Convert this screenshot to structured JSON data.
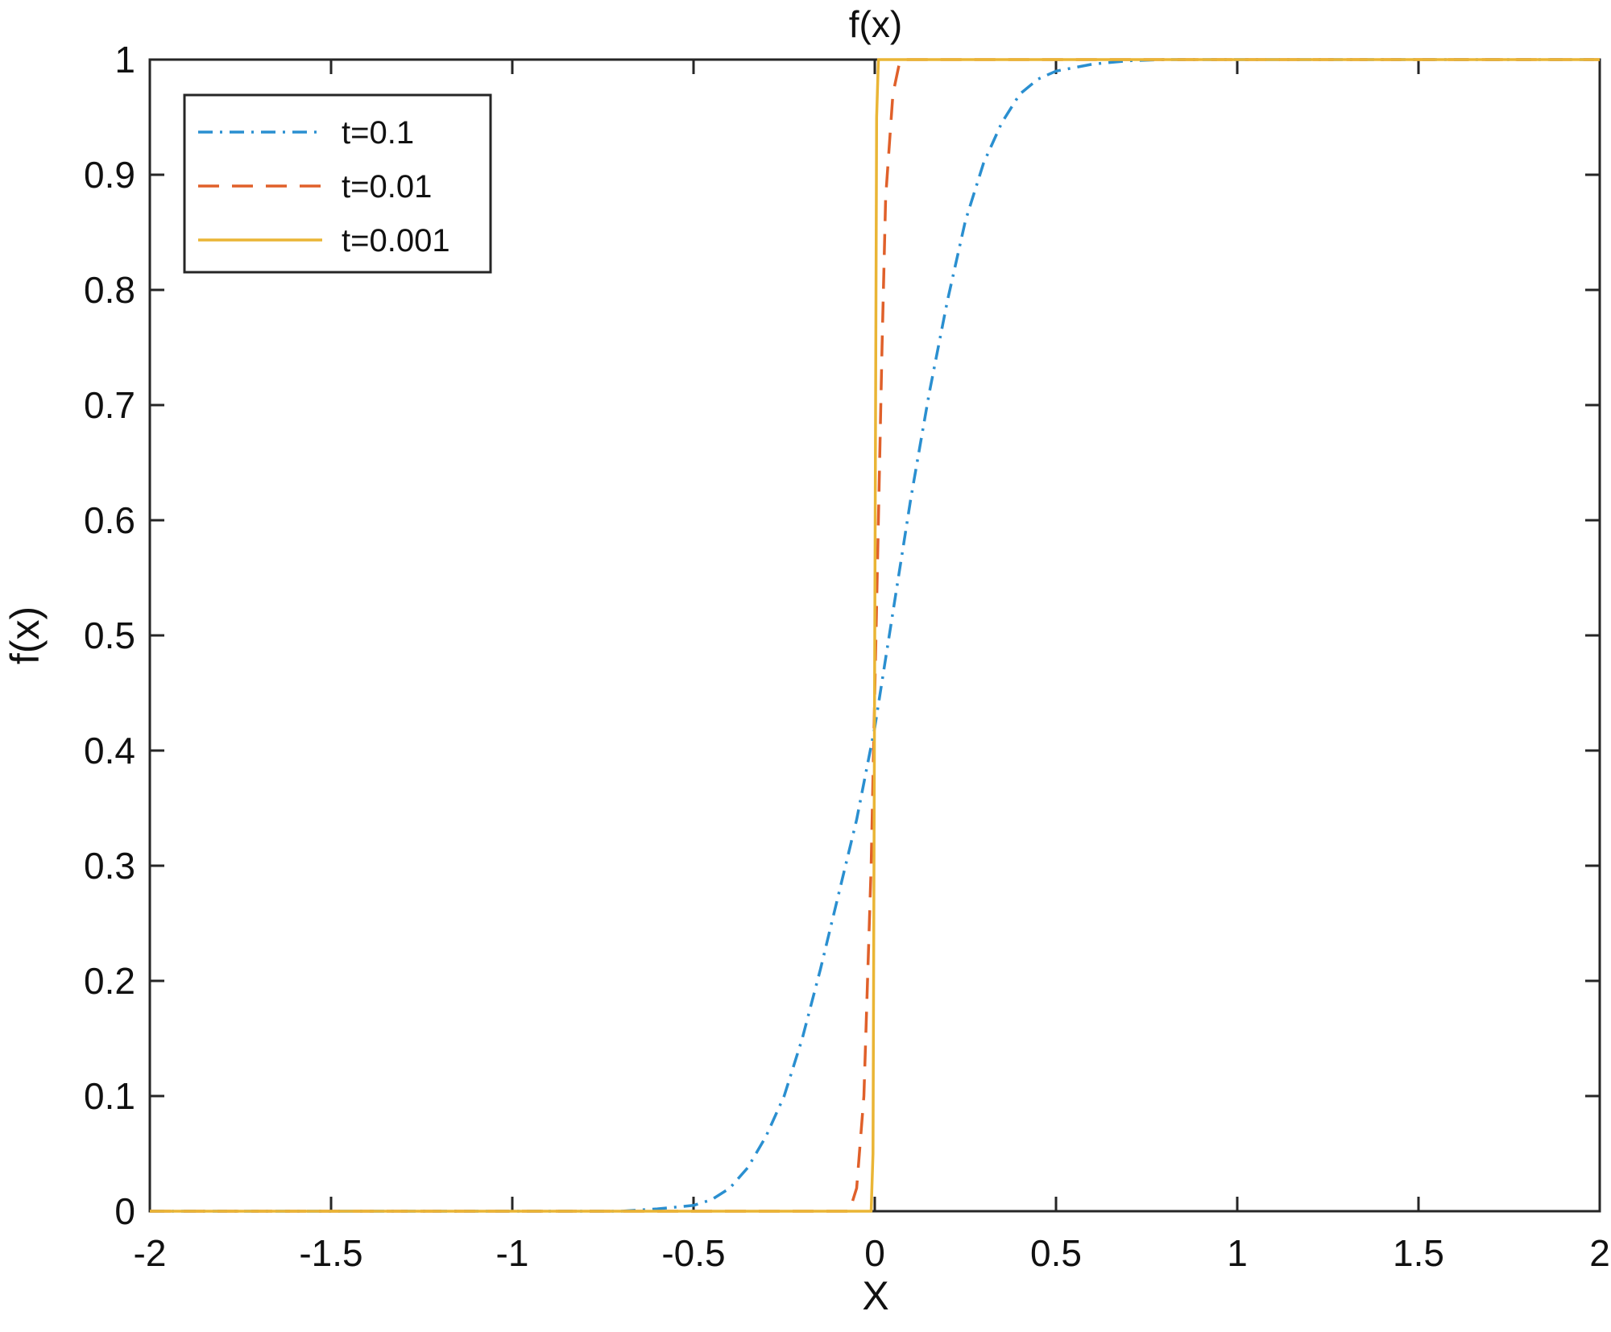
{
  "chart_data": {
    "type": "line",
    "title": "f(x)",
    "xlabel": "X",
    "ylabel": "f(x)",
    "xlim": [
      -2,
      2
    ],
    "ylim": [
      0,
      1
    ],
    "xticks": [
      "-2",
      "-1.5",
      "-1",
      "-0.5",
      "0",
      "0.5",
      "1",
      "1.5",
      "2"
    ],
    "yticks": [
      "0",
      "0.1",
      "0.2",
      "0.3",
      "0.4",
      "0.5",
      "0.6",
      "0.7",
      "0.8",
      "0.9",
      "1"
    ],
    "grid": false,
    "legend_position": "top-left",
    "series": [
      {
        "name": "t=0.1",
        "color": "#2a8fd0",
        "line_style": "dash-dot",
        "x": [
          -2,
          -0.7,
          -0.6,
          -0.5,
          -0.45,
          -0.4,
          -0.35,
          -0.3,
          -0.25,
          -0.2,
          -0.15,
          -0.1,
          -0.05,
          0,
          0.05,
          0.1,
          0.15,
          0.2,
          0.25,
          0.3,
          0.35,
          0.4,
          0.45,
          0.5,
          0.6,
          0.7,
          0.8,
          2
        ],
        "y": [
          0,
          0,
          0.002,
          0.005,
          0.01,
          0.02,
          0.038,
          0.065,
          0.1,
          0.15,
          0.21,
          0.275,
          0.34,
          0.42,
          0.52,
          0.62,
          0.71,
          0.79,
          0.86,
          0.91,
          0.945,
          0.97,
          0.983,
          0.99,
          0.996,
          0.999,
          1,
          1
        ]
      },
      {
        "name": "t=0.01",
        "color": "#e0602a",
        "line_style": "dashed",
        "x": [
          -2,
          -0.07,
          -0.05,
          -0.03,
          -0.02,
          -0.01,
          0,
          0.01,
          0.02,
          0.03,
          0.05,
          0.07,
          2
        ],
        "y": [
          0,
          0,
          0.02,
          0.1,
          0.2,
          0.3,
          0.45,
          0.6,
          0.75,
          0.88,
          0.97,
          1,
          1
        ]
      },
      {
        "name": "t=0.001",
        "color": "#eab535",
        "line_style": "solid",
        "x": [
          -2,
          -0.01,
          -0.005,
          0,
          0.005,
          0.01,
          2
        ],
        "y": [
          0,
          0,
          0.05,
          0.5,
          0.95,
          1,
          1
        ]
      }
    ]
  }
}
